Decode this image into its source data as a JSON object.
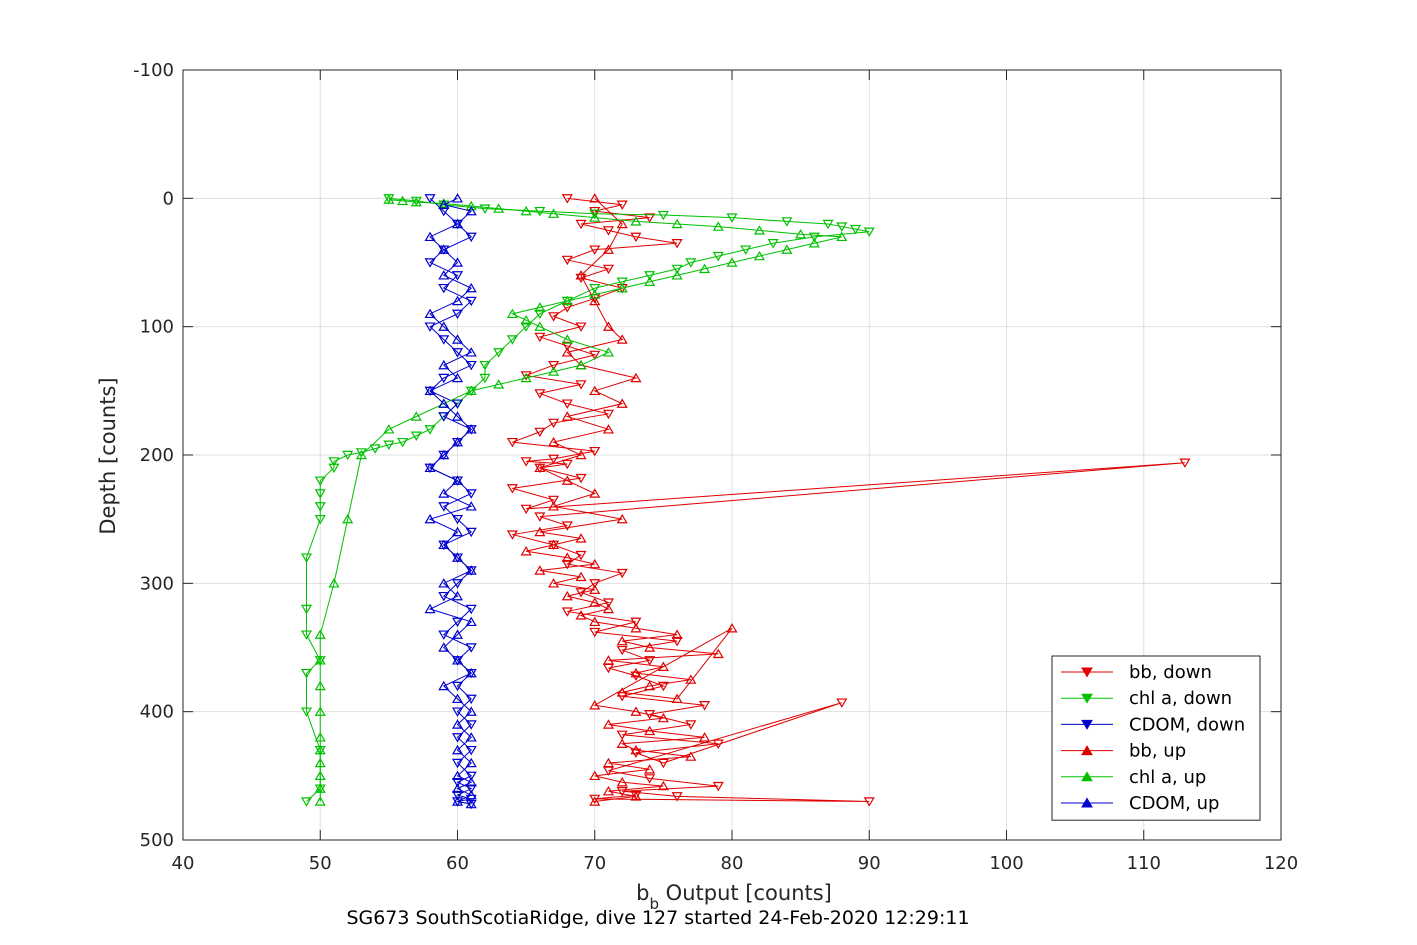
{
  "chart_data": {
    "type": "scatter",
    "title": "",
    "caption": "SG673 SouthScotiaRidge, dive 127 started 24-Feb-2020 12:29:11",
    "xlabel_main": "b",
    "xlabel_sub": "b",
    "xlabel_rest": " Output [counts]",
    "ylabel": "Depth [counts]",
    "xlim": [
      40,
      120
    ],
    "ylim": [
      -100,
      500
    ],
    "y_reversed": true,
    "xticks": [
      "40",
      "50",
      "60",
      "70",
      "80",
      "90",
      "100",
      "110",
      "120"
    ],
    "yticks": [
      "-100",
      "0",
      "100",
      "200",
      "300",
      "400",
      "500"
    ],
    "grid": true,
    "legend_position": "bottom-right",
    "series": [
      {
        "name": "bb, down",
        "color": "#e00000",
        "marker": "triangle-down",
        "lines": true,
        "x": [
          68,
          72,
          70,
          74,
          69,
          71,
          73,
          76,
          70,
          68,
          71,
          69,
          72,
          70,
          68,
          67,
          69,
          66,
          68,
          70,
          67,
          65,
          69,
          66,
          68,
          71,
          67,
          66,
          64,
          70,
          67,
          65,
          68,
          66,
          69,
          64,
          67,
          65,
          113,
          66,
          68,
          64,
          67,
          69,
          68,
          72,
          70,
          69,
          71,
          68,
          73,
          70,
          76,
          72,
          74,
          71,
          73,
          75,
          72,
          78,
          74,
          77,
          72,
          79,
          73,
          75,
          88,
          71,
          74,
          79,
          72,
          76,
          90,
          70,
          73
        ],
        "y": [
          0,
          5,
          10,
          15,
          20,
          25,
          30,
          35,
          40,
          48,
          55,
          62,
          70,
          78,
          85,
          92,
          100,
          108,
          115,
          122,
          130,
          138,
          145,
          152,
          160,
          168,
          175,
          182,
          190,
          197,
          203,
          205,
          207,
          210,
          218,
          226,
          235,
          242,
          206,
          248,
          255,
          262,
          270,
          278,
          285,
          292,
          300,
          307,
          315,
          322,
          330,
          338,
          345,
          352,
          360,
          366,
          372,
          380,
          388,
          395,
          402,
          410,
          418,
          425,
          432,
          440,
          393,
          446,
          452,
          458,
          462,
          466,
          470,
          468,
          465
        ]
      },
      {
        "name": "chl a, down",
        "color": "#00c000",
        "marker": "triangle-down",
        "lines": true,
        "x": [
          55,
          57,
          59,
          62,
          66,
          70,
          75,
          80,
          84,
          87,
          88,
          89,
          90,
          86,
          83,
          81,
          79,
          77,
          76,
          74,
          72,
          70,
          68,
          66,
          65,
          64,
          63,
          62,
          62,
          61,
          60,
          59,
          58,
          57,
          56,
          55,
          54,
          53,
          52,
          51,
          51,
          50,
          50,
          50,
          50,
          49,
          49,
          49,
          50,
          49,
          49,
          50,
          50,
          49
        ],
        "y": [
          0,
          2,
          5,
          8,
          10,
          12,
          13,
          15,
          18,
          20,
          22,
          24,
          26,
          30,
          35,
          40,
          45,
          50,
          55,
          60,
          65,
          70,
          80,
          90,
          100,
          110,
          120,
          130,
          140,
          150,
          160,
          170,
          180,
          185,
          190,
          192,
          195,
          198,
          200,
          205,
          210,
          220,
          230,
          240,
          250,
          280,
          320,
          340,
          360,
          370,
          400,
          430,
          460,
          470
        ]
      },
      {
        "name": "CDOM, down",
        "color": "#0000d0",
        "marker": "triangle-down",
        "lines": true,
        "x": [
          58,
          59,
          60,
          61,
          59,
          58,
          60,
          59,
          61,
          60,
          58,
          59,
          60,
          61,
          59,
          58,
          60,
          59,
          61,
          60,
          59,
          58,
          60,
          61,
          59,
          60,
          61,
          59,
          60,
          61,
          60,
          59,
          61,
          60,
          59,
          61,
          60,
          61,
          60,
          61,
          60,
          61,
          60,
          61,
          60,
          61,
          60,
          61,
          60,
          61,
          60,
          61
        ],
        "y": [
          0,
          10,
          20,
          30,
          40,
          50,
          60,
          70,
          80,
          90,
          100,
          110,
          120,
          130,
          140,
          150,
          160,
          170,
          180,
          190,
          200,
          210,
          220,
          230,
          240,
          250,
          260,
          270,
          280,
          290,
          300,
          310,
          320,
          330,
          340,
          350,
          360,
          370,
          380,
          390,
          400,
          410,
          420,
          430,
          440,
          450,
          455,
          460,
          465,
          468,
          470,
          472
        ]
      },
      {
        "name": "bb, up",
        "color": "#e00000",
        "marker": "triangle-up",
        "lines": true,
        "x": [
          70,
          73,
          71,
          75,
          72,
          70,
          74,
          71,
          77,
          73,
          72,
          78,
          74,
          71,
          75,
          73,
          70,
          80,
          76,
          72,
          74,
          77,
          73,
          75,
          71,
          79,
          74,
          72,
          76,
          73,
          70,
          69,
          71,
          70,
          68,
          70,
          67,
          69,
          66,
          70,
          68,
          65,
          67,
          69,
          66,
          72,
          67,
          70,
          68,
          66,
          69,
          67,
          71,
          68,
          72,
          70,
          73,
          69,
          68,
          72,
          71,
          70,
          69,
          71,
          72,
          70
        ],
        "y": [
          470,
          466,
          462,
          458,
          455,
          450,
          445,
          440,
          435,
          430,
          425,
          420,
          415,
          410,
          405,
          400,
          395,
          335,
          390,
          385,
          380,
          375,
          370,
          365,
          360,
          355,
          350,
          345,
          340,
          335,
          330,
          325,
          320,
          315,
          310,
          305,
          300,
          295,
          290,
          285,
          280,
          275,
          270,
          265,
          260,
          250,
          240,
          230,
          220,
          210,
          200,
          190,
          180,
          170,
          160,
          150,
          140,
          130,
          120,
          110,
          100,
          80,
          60,
          40,
          20,
          0
        ]
      },
      {
        "name": "chl a, up",
        "color": "#00c000",
        "marker": "triangle-up",
        "lines": true,
        "x": [
          50,
          50,
          50,
          50,
          50,
          50,
          50,
          50,
          50,
          50,
          51,
          52,
          53,
          55,
          57,
          59,
          61,
          63,
          65,
          67,
          69,
          71,
          68,
          66,
          65,
          64,
          66,
          68,
          70,
          72,
          74,
          76,
          78,
          80,
          82,
          84,
          86,
          88,
          85,
          82,
          79,
          76,
          73,
          70,
          67,
          65,
          63,
          61,
          59,
          57,
          56,
          55
        ],
        "y": [
          470,
          460,
          450,
          440,
          430,
          420,
          400,
          380,
          360,
          340,
          300,
          250,
          200,
          180,
          170,
          160,
          150,
          145,
          140,
          135,
          130,
          120,
          110,
          100,
          95,
          90,
          85,
          80,
          75,
          70,
          65,
          60,
          55,
          50,
          45,
          40,
          35,
          30,
          28,
          25,
          22,
          20,
          18,
          15,
          12,
          10,
          8,
          6,
          4,
          3,
          2,
          1
        ]
      },
      {
        "name": "CDOM, up",
        "color": "#0000d0",
        "marker": "triangle-up",
        "lines": true,
        "x": [
          61,
          60,
          61,
          60,
          61,
          60,
          61,
          60,
          61,
          60,
          61,
          60,
          59,
          61,
          60,
          59,
          60,
          61,
          58,
          60,
          59,
          61,
          60,
          59,
          60,
          58,
          61,
          59,
          60,
          58,
          59,
          60,
          61,
          60,
          59,
          58,
          60,
          59,
          61,
          60,
          59,
          58,
          60,
          61,
          59,
          60,
          59,
          58,
          60,
          61,
          59,
          60
        ],
        "y": [
          472,
          470,
          465,
          460,
          455,
          450,
          440,
          430,
          420,
          410,
          400,
          390,
          380,
          370,
          360,
          350,
          340,
          330,
          320,
          310,
          300,
          290,
          280,
          270,
          260,
          250,
          240,
          230,
          220,
          210,
          200,
          190,
          180,
          170,
          160,
          150,
          140,
          130,
          120,
          110,
          100,
          90,
          80,
          70,
          60,
          50,
          40,
          30,
          20,
          10,
          5,
          0
        ]
      }
    ]
  }
}
